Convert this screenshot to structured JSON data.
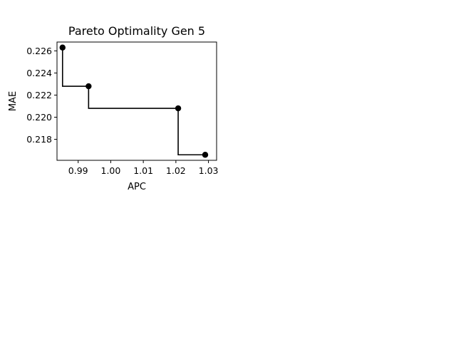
{
  "chart_data": {
    "type": "line",
    "title": "Pareto Optimality Gen 5",
    "xlabel": "APC",
    "ylabel": "MAE",
    "xlim": [
      0.9835,
      1.0325
    ],
    "ylim": [
      0.2161,
      0.2268
    ],
    "x_ticks": [
      {
        "value": 0.99,
        "label": "0.99"
      },
      {
        "value": 1.0,
        "label": "1.00"
      },
      {
        "value": 1.01,
        "label": "1.01"
      },
      {
        "value": 1.02,
        "label": "1.02"
      },
      {
        "value": 1.03,
        "label": "1.03"
      }
    ],
    "y_ticks": [
      {
        "value": 0.218,
        "label": "0.218"
      },
      {
        "value": 0.22,
        "label": "0.220"
      },
      {
        "value": 0.222,
        "label": "0.222"
      },
      {
        "value": 0.224,
        "label": "0.224"
      },
      {
        "value": 0.226,
        "label": "0.226"
      }
    ],
    "grid": false,
    "step_mode": "post",
    "colors": {
      "line": "#000000",
      "marker": "#000000"
    },
    "points": [
      {
        "x": 0.9852,
        "y": 0.2263
      },
      {
        "x": 0.9932,
        "y": 0.2228
      },
      {
        "x": 1.0207,
        "y": 0.2208
      },
      {
        "x": 1.029,
        "y": 0.2166
      }
    ]
  }
}
